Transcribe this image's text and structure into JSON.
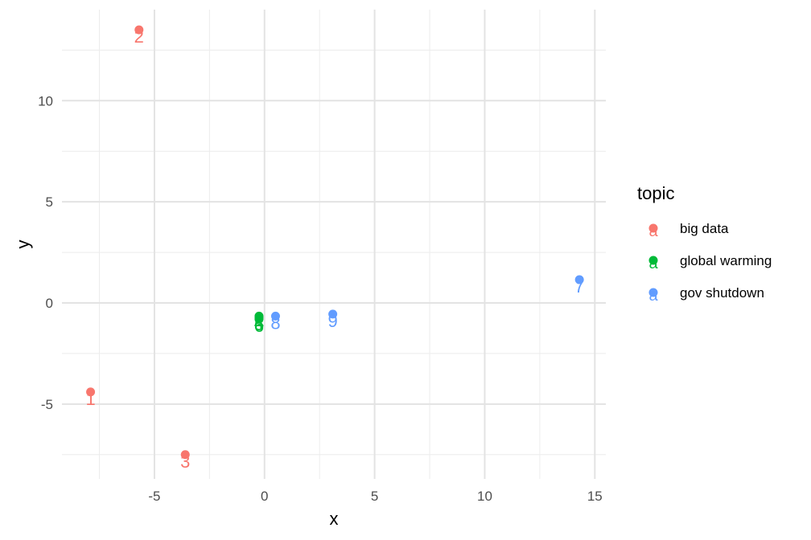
{
  "chart_data": {
    "type": "scatter",
    "xlabel": "x",
    "ylabel": "y",
    "xlim": [
      -9.2,
      15.5
    ],
    "ylim": [
      -8.7,
      14.5
    ],
    "x_ticks": [
      -5,
      0,
      5,
      10,
      15
    ],
    "y_ticks": [
      -5,
      0,
      5,
      10
    ],
    "x_tick_labels": [
      "-5",
      "0",
      "5",
      "10",
      "15"
    ],
    "y_tick_labels": [
      "-5",
      "0",
      "5",
      "10"
    ],
    "grid": true,
    "legend_position": "right",
    "legend_title": "topic",
    "legend_key_glyph": "a",
    "series": [
      {
        "name": "big data",
        "color": "#F8766D",
        "points": [
          {
            "label": "1",
            "x": -7.9,
            "y": -4.4
          },
          {
            "label": "2",
            "x": -5.7,
            "y": 13.5
          },
          {
            "label": "3",
            "x": -3.6,
            "y": -7.5
          }
        ]
      },
      {
        "name": "global warming",
        "color": "#00BA38",
        "points": [
          {
            "label": "4",
            "x": -0.25,
            "y": -0.65
          },
          {
            "label": "5",
            "x": -0.25,
            "y": -0.72
          },
          {
            "label": "6",
            "x": -0.25,
            "y": -0.8
          }
        ]
      },
      {
        "name": "gov shutdown",
        "color": "#619CFF",
        "points": [
          {
            "label": "7",
            "x": 14.3,
            "y": 1.15
          },
          {
            "label": "8",
            "x": 0.5,
            "y": -0.65
          },
          {
            "label": "9",
            "x": 3.1,
            "y": -0.55
          }
        ]
      }
    ]
  }
}
